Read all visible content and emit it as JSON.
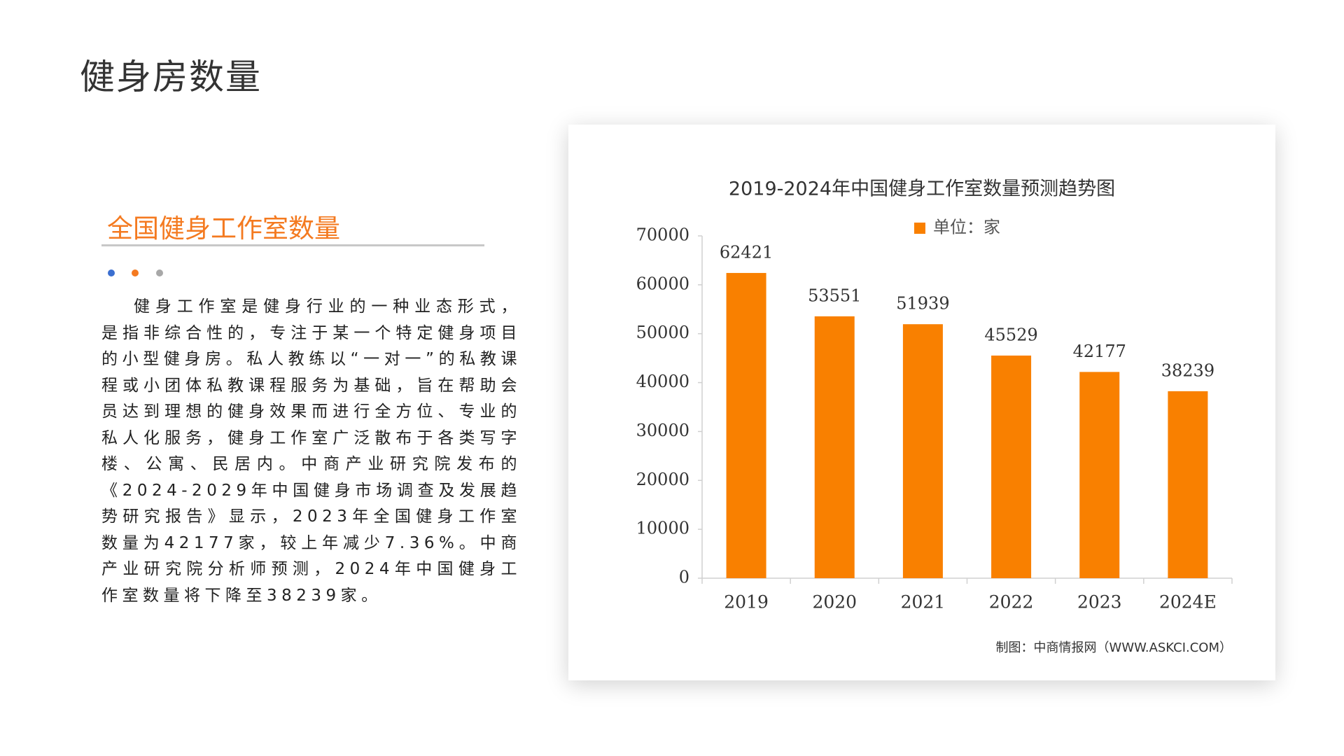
{
  "page_title": "健身房数量",
  "section_title": "全国健身工作室数量",
  "paragraph": "健身工作室是健身行业的一种业态形式，是指非综合性的，专注于某一个特定健身项目的小型健身房。私人教练以“一对一”的私教课程或小团体私教课程服务为基础，旨在帮助会员达到理想的健身效果而进行全方位、专业的私人化服务，健身工作室广泛散布于各类写字楼、公寓、民居内。中商产业研究院发布的《2024-2029年中国健身市场调查及发展趋势研究报告》显示，2023年全国健身工作室数量为42177家，较上年减少7.36%。中商产业研究院分析师预测，2024年中国健身工作室数量将下降至38239家。",
  "chart_data": {
    "type": "bar",
    "title": "2019-2024年中国健身工作室数量预测趋势图",
    "source": "制图：中商情报网（WWW.ASKCI.COM）",
    "categories": [
      "2019",
      "2020",
      "2021",
      "2022",
      "2023",
      "2024E"
    ],
    "series": [
      {
        "name": "单位：家",
        "color": "#f98000",
        "values": [
          62421,
          53551,
          51939,
          45529,
          42177,
          38239
        ]
      }
    ],
    "ylim": [
      0,
      70000
    ],
    "yticks": [
      0,
      10000,
      20000,
      30000,
      40000,
      50000,
      60000,
      70000
    ],
    "grid": false,
    "legend": "top"
  }
}
